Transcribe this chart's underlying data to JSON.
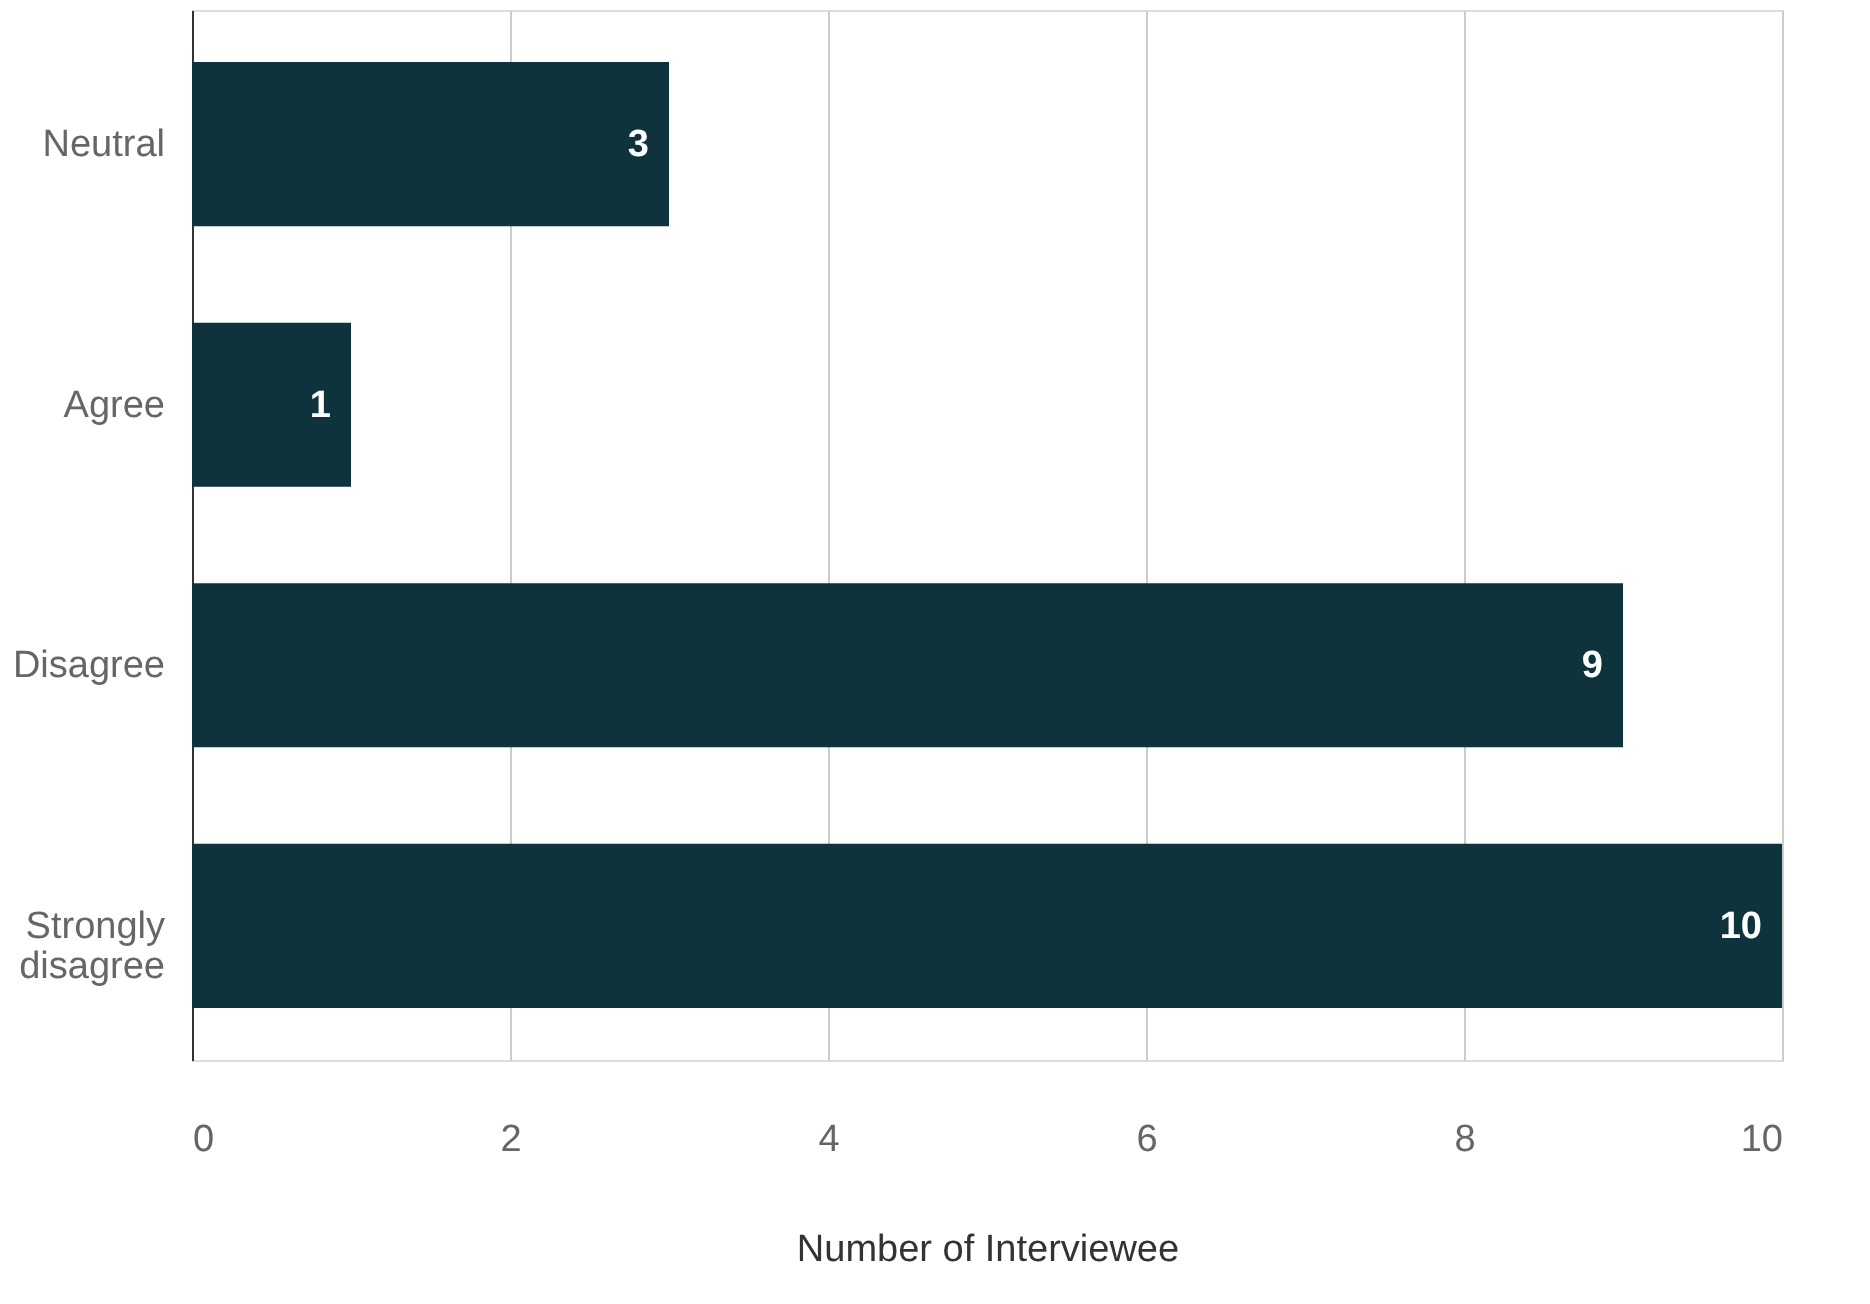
{
  "chart_data": {
    "type": "bar",
    "orientation": "horizontal",
    "xlabel": "Number of Interviewee",
    "categories": [
      "Neutral",
      "Agree",
      "Disagree",
      "Strongly disagree"
    ],
    "values": [
      3,
      1,
      9,
      10
    ],
    "color": "#0f333d",
    "xlim": [
      0,
      10
    ],
    "xticks": [
      0,
      2,
      4,
      6,
      8,
      10
    ],
    "grid": "x",
    "data_labels": true
  }
}
